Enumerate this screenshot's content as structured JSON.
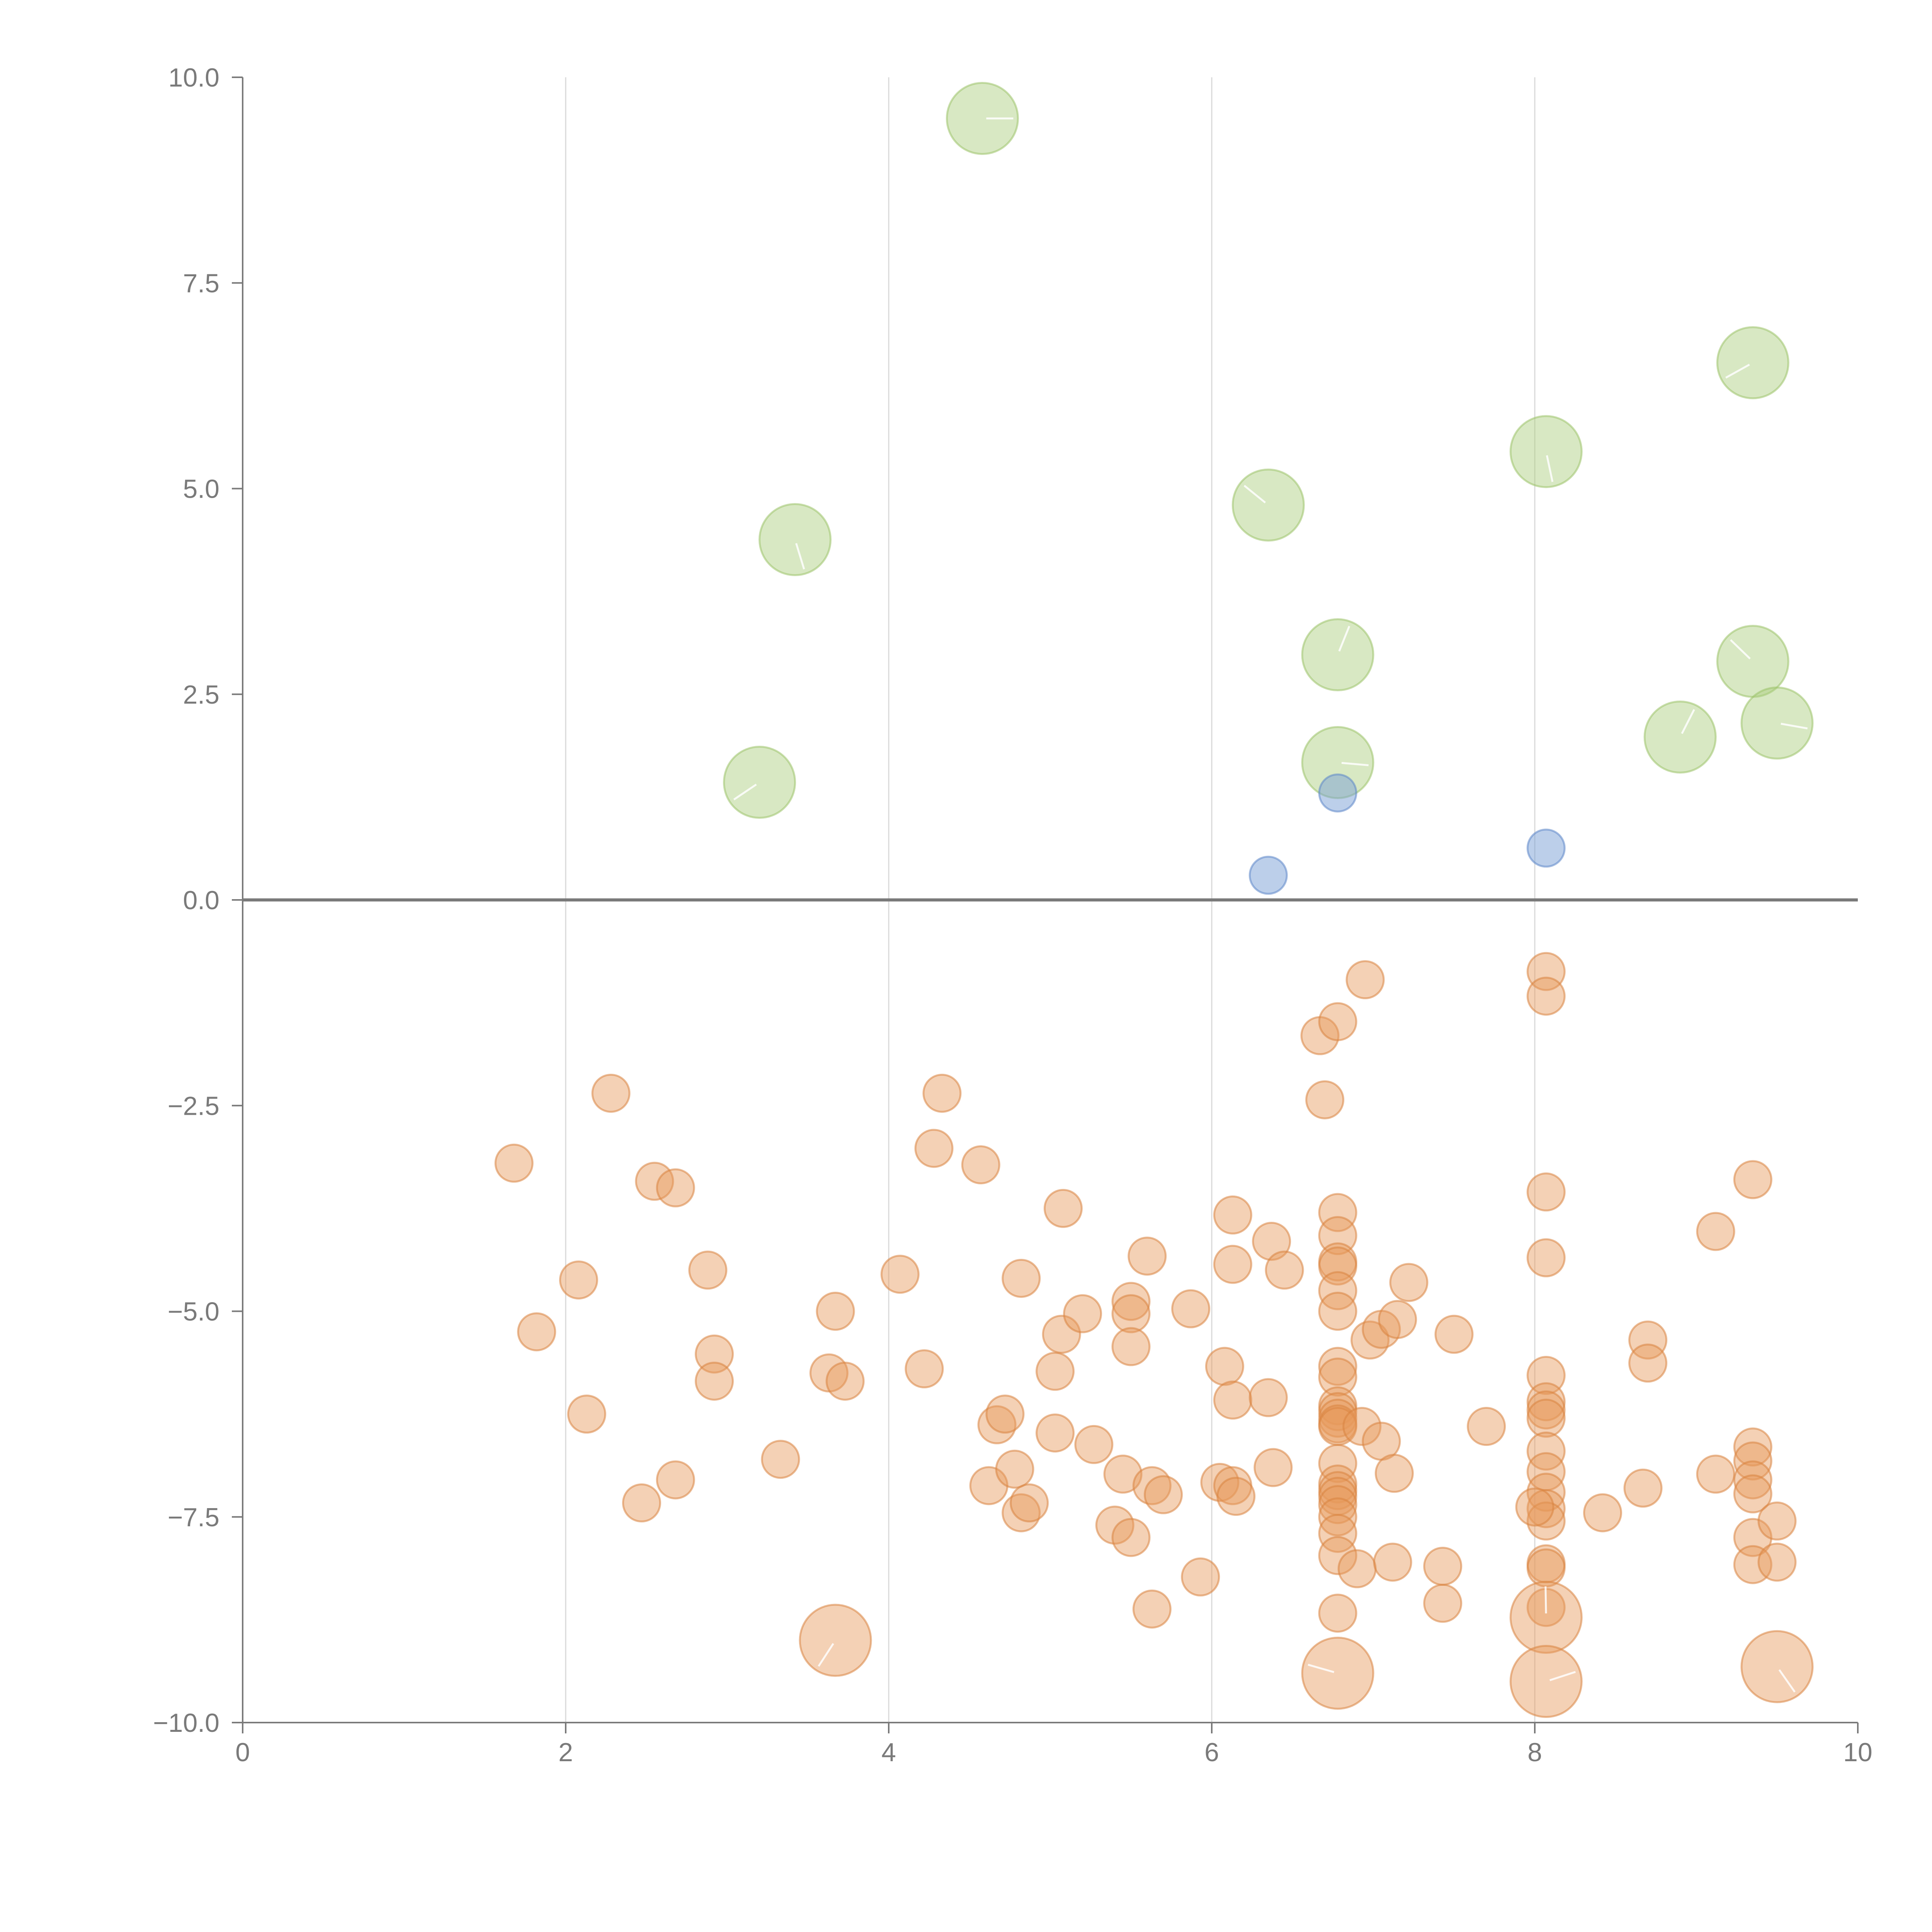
{
  "chart_data": {
    "type": "scatter",
    "title": "",
    "xlabel": "",
    "ylabel": "",
    "xlim": [
      0,
      10
    ],
    "ylim": [
      -10,
      10
    ],
    "x_ticks": [
      "0",
      "2",
      "4",
      "6",
      "8",
      "10"
    ],
    "y_ticks": [
      "10.0",
      "7.5",
      "5.0",
      "2.5",
      "0.0",
      "−2.5",
      "−5.0",
      "−7.5",
      "−10.0"
    ],
    "grid": "vertical",
    "zero_line": true,
    "legend": "none",
    "series": [
      {
        "color": "#a9cc7a",
        "stroke": "#9cc26a",
        "opacity": 0.45,
        "size": "large",
        "points": [
          [
            4.58,
            9.5
          ],
          [
            3.42,
            4.38
          ],
          [
            3.2,
            1.43
          ],
          [
            6.35,
            4.8
          ],
          [
            6.78,
            2.98
          ],
          [
            6.78,
            1.67
          ],
          [
            8.07,
            5.45
          ],
          [
            9.35,
            6.53
          ],
          [
            9.35,
            2.9
          ],
          [
            8.9,
            1.98
          ],
          [
            9.5,
            2.15
          ]
        ]
      },
      {
        "color": "#7a9fd6",
        "stroke": "#5c86c8",
        "opacity": 0.5,
        "size": "small",
        "points": [
          [
            6.35,
            0.3
          ],
          [
            6.78,
            1.3
          ],
          [
            8.07,
            0.63
          ]
        ]
      },
      {
        "color": "#e69a5c",
        "stroke": "#d9833f",
        "opacity": 0.45,
        "size": "small",
        "points": [
          [
            1.68,
            -3.2
          ],
          [
            1.82,
            -5.25
          ],
          [
            2.08,
            -4.62
          ],
          [
            2.13,
            -6.25
          ],
          [
            2.28,
            -2.35
          ],
          [
            2.47,
            -7.33
          ],
          [
            2.55,
            -3.42
          ],
          [
            2.68,
            -3.5
          ],
          [
            2.68,
            -7.05
          ],
          [
            2.88,
            -4.5
          ],
          [
            2.92,
            -5.52
          ],
          [
            2.92,
            -5.85
          ],
          [
            3.33,
            -6.8
          ],
          [
            3.63,
            -5.75
          ],
          [
            3.67,
            -5.0
          ],
          [
            3.73,
            -5.85
          ],
          [
            4.07,
            -4.55
          ],
          [
            4.22,
            -5.7
          ],
          [
            4.28,
            -3.02
          ],
          [
            4.33,
            -2.35
          ],
          [
            4.57,
            -3.22
          ],
          [
            4.62,
            -7.12
          ],
          [
            4.67,
            -6.38
          ],
          [
            4.72,
            -6.25
          ],
          [
            4.78,
            -6.92
          ],
          [
            4.82,
            -4.6
          ],
          [
            4.82,
            -7.45
          ],
          [
            4.87,
            -7.33
          ],
          [
            5.03,
            -5.73
          ],
          [
            5.03,
            -6.48
          ],
          [
            5.07,
            -5.28
          ],
          [
            5.08,
            -3.75
          ],
          [
            5.2,
            -5.03
          ],
          [
            5.27,
            -6.62
          ],
          [
            5.4,
            -7.6
          ],
          [
            5.45,
            -6.98
          ],
          [
            5.5,
            -4.88
          ],
          [
            5.5,
            -5.03
          ],
          [
            5.5,
            -5.43
          ],
          [
            5.5,
            -7.75
          ],
          [
            5.6,
            -4.33
          ],
          [
            5.63,
            -7.12
          ],
          [
            5.63,
            -8.62
          ],
          [
            5.7,
            -7.23
          ],
          [
            5.87,
            -4.97
          ],
          [
            5.93,
            -8.23
          ],
          [
            6.05,
            -7.08
          ],
          [
            6.08,
            -5.67
          ],
          [
            6.13,
            -3.83
          ],
          [
            6.13,
            -4.43
          ],
          [
            6.13,
            -6.08
          ],
          [
            6.13,
            -7.12
          ],
          [
            6.15,
            -7.25
          ],
          [
            6.35,
            -6.05
          ],
          [
            6.37,
            -4.15
          ],
          [
            6.38,
            -6.9
          ],
          [
            6.45,
            -4.5
          ],
          [
            6.67,
            -1.65
          ],
          [
            6.7,
            -2.43
          ],
          [
            6.78,
            -1.48
          ],
          [
            6.78,
            -3.8
          ],
          [
            6.78,
            -4.08
          ],
          [
            6.78,
            -4.4
          ],
          [
            6.78,
            -4.45
          ],
          [
            6.78,
            -4.75
          ],
          [
            6.78,
            -5.0
          ],
          [
            6.78,
            -5.67
          ],
          [
            6.78,
            -5.8
          ],
          [
            6.78,
            -6.15
          ],
          [
            6.78,
            -6.22
          ],
          [
            6.78,
            -6.3
          ],
          [
            6.78,
            -6.37
          ],
          [
            6.78,
            -6.4
          ],
          [
            6.78,
            -6.85
          ],
          [
            6.78,
            -7.1
          ],
          [
            6.78,
            -7.18
          ],
          [
            6.78,
            -7.25
          ],
          [
            6.78,
            -7.35
          ],
          [
            6.78,
            -7.5
          ],
          [
            6.78,
            -7.7
          ],
          [
            6.78,
            -7.97
          ],
          [
            6.78,
            -8.67
          ],
          [
            6.9,
            -8.13
          ],
          [
            6.93,
            -6.4
          ],
          [
            6.95,
            -0.97
          ],
          [
            6.98,
            -5.35
          ],
          [
            7.05,
            -5.22
          ],
          [
            7.05,
            -6.58
          ],
          [
            7.12,
            -8.05
          ],
          [
            7.13,
            -6.97
          ],
          [
            7.15,
            -5.1
          ],
          [
            7.22,
            -4.65
          ],
          [
            7.43,
            -8.1
          ],
          [
            7.43,
            -8.55
          ],
          [
            7.5,
            -5.28
          ],
          [
            7.7,
            -6.4
          ],
          [
            8.07,
            -0.87
          ],
          [
            8.07,
            -1.17
          ],
          [
            8.07,
            -3.55
          ],
          [
            8.07,
            -4.35
          ],
          [
            8.07,
            -5.78
          ],
          [
            8.07,
            -6.1
          ],
          [
            8.07,
            -6.2
          ],
          [
            8.07,
            -6.3
          ],
          [
            8.07,
            -6.7
          ],
          [
            8.07,
            -6.95
          ],
          [
            8.07,
            -7.2
          ],
          [
            8.07,
            -7.4
          ],
          [
            8.07,
            -7.55
          ],
          [
            8.07,
            -8.07
          ],
          [
            8.07,
            -8.12
          ],
          [
            8.07,
            -8.6
          ],
          [
            8.0,
            -7.38
          ],
          [
            8.42,
            -7.45
          ],
          [
            8.67,
            -7.15
          ],
          [
            8.7,
            -5.35
          ],
          [
            8.7,
            -5.63
          ],
          [
            9.12,
            -4.03
          ],
          [
            9.12,
            -6.98
          ],
          [
            9.35,
            -3.4
          ],
          [
            9.35,
            -6.65
          ],
          [
            9.35,
            -6.82
          ],
          [
            9.35,
            -7.05
          ],
          [
            9.35,
            -7.22
          ],
          [
            9.35,
            -7.75
          ],
          [
            9.35,
            -8.08
          ],
          [
            9.5,
            -7.55
          ],
          [
            9.5,
            -8.05
          ]
        ]
      },
      {
        "color": "#e69a5c",
        "stroke": "#d9833f",
        "opacity": 0.45,
        "size": "large",
        "points": [
          [
            3.67,
            -9.0
          ],
          [
            6.78,
            -9.4
          ],
          [
            8.07,
            -8.72
          ],
          [
            8.07,
            -9.5
          ],
          [
            9.5,
            -9.32
          ]
        ]
      }
    ]
  }
}
